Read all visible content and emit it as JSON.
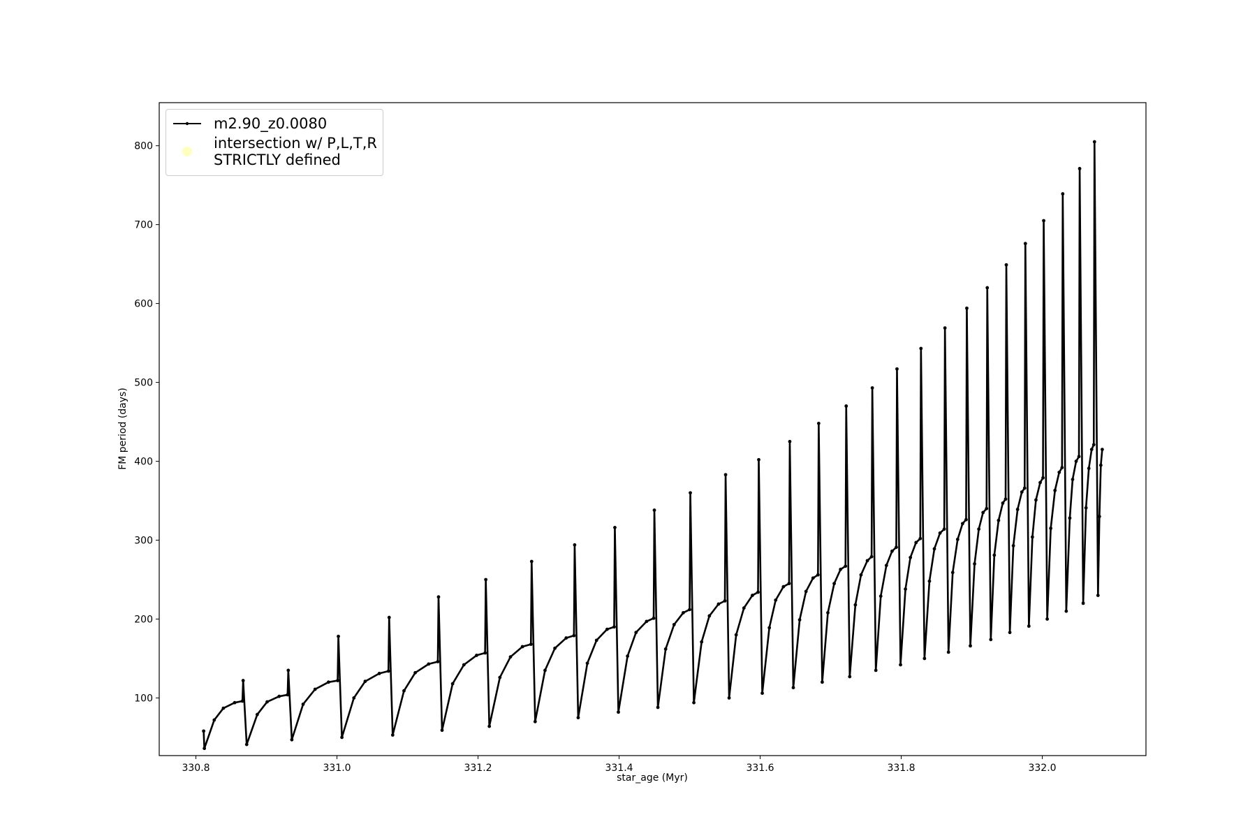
{
  "chart_data": {
    "type": "line",
    "xlabel": "star_age (Myr)",
    "ylabel": "FM period (days)",
    "xlim": [
      330.748,
      332.147
    ],
    "ylim": [
      26.9,
      854.6
    ],
    "xticks": [
      330.8,
      {
        "value": 331,
        "label": "331.0"
      },
      331.2,
      331.4,
      331.6,
      331.8,
      {
        "value": 332,
        "label": "332.0"
      }
    ],
    "yticks": [
      100,
      200,
      300,
      400,
      500,
      600,
      700,
      800
    ],
    "legend": "upper left",
    "series": [
      {
        "name": "m2.90_z0.0080",
        "color": "#000000",
        "x": [
          330.811,
          330.812,
          330.826,
          330.839,
          330.855,
          330.866,
          330.867,
          330.872,
          330.887,
          330.901,
          330.918,
          330.93,
          330.931,
          330.936,
          330.952,
          330.969,
          330.988,
          331.001,
          331.002,
          331.007,
          331.024,
          331.04,
          331.06,
          331.073,
          331.074,
          331.079,
          331.095,
          331.111,
          331.13,
          331.143,
          331.144,
          331.149,
          331.164,
          331.18,
          331.198,
          331.21,
          331.211,
          331.216,
          331.231,
          331.246,
          331.263,
          331.275,
          331.276,
          331.281,
          331.295,
          331.309,
          331.325,
          331.336,
          331.337,
          331.342,
          331.355,
          331.368,
          331.383,
          331.393,
          331.394,
          331.399,
          331.412,
          331.424,
          331.439,
          331.449,
          331.45,
          331.455,
          331.466,
          331.478,
          331.491,
          331.5,
          331.501,
          331.506,
          331.517,
          331.528,
          331.541,
          331.55,
          331.551,
          331.556,
          331.566,
          331.577,
          331.589,
          331.597,
          331.598,
          331.603,
          331.613,
          331.622,
          331.633,
          331.641,
          331.642,
          331.647,
          331.656,
          331.665,
          331.675,
          331.682,
          331.683,
          331.688,
          331.696,
          331.705,
          331.714,
          331.721,
          331.722,
          331.727,
          331.735,
          331.743,
          331.752,
          331.758,
          331.759,
          331.764,
          331.771,
          331.779,
          331.787,
          331.793,
          331.794,
          331.799,
          331.806,
          331.813,
          331.821,
          331.827,
          331.828,
          331.833,
          331.84,
          331.847,
          331.855,
          331.861,
          331.862,
          331.867,
          331.873,
          331.88,
          331.887,
          331.892,
          331.893,
          331.898,
          331.904,
          331.91,
          331.916,
          331.921,
          331.922,
          331.927,
          331.932,
          331.938,
          331.944,
          331.948,
          331.949,
          331.954,
          331.959,
          331.965,
          331.971,
          331.975,
          331.976,
          331.981,
          331.986,
          331.991,
          331.997,
          332.001,
          332.002,
          332.007,
          332.012,
          332.018,
          332.024,
          332.028,
          332.029,
          332.034,
          332.039,
          332.043,
          332.048,
          332.052,
          332.053,
          332.058,
          332.062,
          332.066,
          332.07,
          332.073,
          332.074,
          332.079,
          332.081,
          332.083,
          332.085
        ],
        "values": [
          58,
          36,
          72,
          87,
          94,
          96,
          122,
          41,
          79,
          95,
          102,
          104,
          135,
          47,
          92,
          111,
          120,
          122,
          178,
          50,
          100,
          121,
          131,
          134,
          202,
          53,
          109,
          132,
          143,
          146,
          228,
          59,
          118,
          142,
          154,
          157,
          250,
          64,
          126,
          152,
          165,
          168,
          273,
          70,
          135,
          163,
          176,
          179,
          294,
          75,
          144,
          173,
          187,
          190,
          316,
          82,
          153,
          183,
          197,
          201,
          338,
          88,
          162,
          193,
          208,
          212,
          360,
          94,
          171,
          204,
          219,
          223,
          383,
          100,
          180,
          214,
          230,
          234,
          402,
          106,
          189,
          224,
          241,
          245,
          425,
          113,
          199,
          235,
          252,
          256,
          448,
          120,
          208,
          245,
          263,
          267,
          470,
          127,
          218,
          256,
          274,
          279,
          493,
          135,
          229,
          268,
          286,
          291,
          517,
          142,
          238,
          278,
          297,
          302,
          543,
          150,
          248,
          289,
          309,
          314,
          569,
          158,
          259,
          301,
          321,
          326,
          594,
          166,
          270,
          314,
          335,
          340,
          620,
          174,
          281,
          325,
          347,
          352,
          649,
          183,
          293,
          339,
          361,
          366,
          676,
          191,
          304,
          351,
          373,
          379,
          705,
          200,
          315,
          363,
          386,
          392,
          739,
          210,
          328,
          377,
          400,
          406,
          771,
          220,
          341,
          391,
          415,
          421,
          805,
          230,
          330,
          395,
          415
        ]
      },
      {
        "name": "intersection w/ P,L,T,R\nSTRICTLY defined",
        "color": "#ffffbf",
        "marker": "circle",
        "x": [],
        "values": []
      }
    ]
  }
}
